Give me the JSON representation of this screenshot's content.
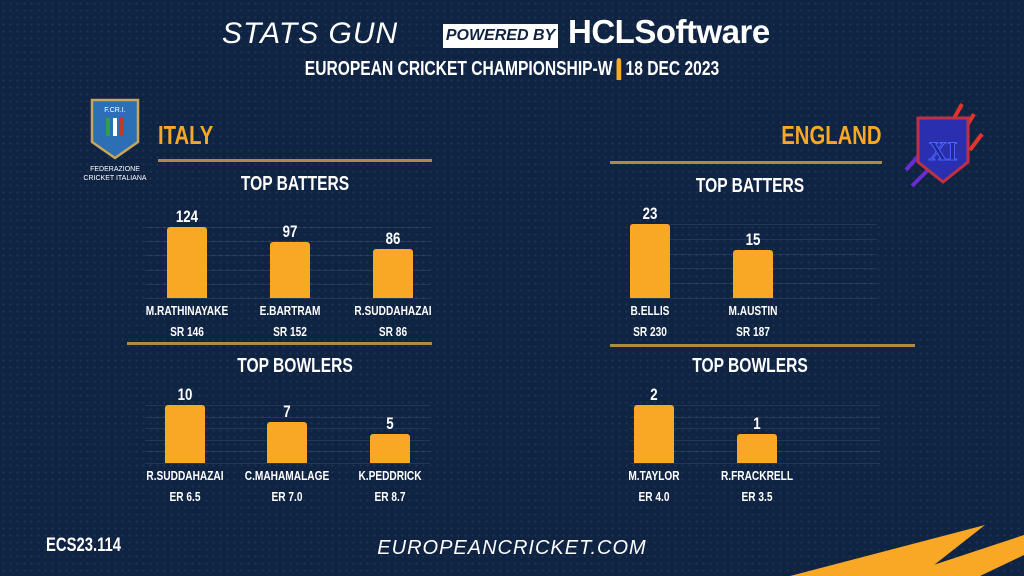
{
  "header": {
    "brand": "STATS GUN",
    "powered_by": "POWERED BY",
    "sponsor": "HCLSoftware",
    "event": "EUROPEAN CRICKET CHAMPIONSHIP-W",
    "separator": "|",
    "date": "18 DEC 2023"
  },
  "teams": {
    "left": {
      "name": "ITALY",
      "logo_text": "FEDERAZIONE CRICKET ITALIANA",
      "logo_abbr": "F.CR.I."
    },
    "right": {
      "name": "ENGLAND",
      "logo_text": "XI"
    }
  },
  "sections": {
    "batters": "TOP BATTERS",
    "bowlers": "TOP BOWLERS"
  },
  "footer": {
    "code": "ECS23.114",
    "website": "EUROPEANCRICKET.COM"
  },
  "colors": {
    "background": "#0f2343",
    "accent": "#f9a826",
    "divider": "#b08a45"
  },
  "chart_data": [
    {
      "type": "bar",
      "title": "TOP BATTERS",
      "team": "ITALY",
      "categories": [
        "M.RATHINAYAKE",
        "E.BARTRAM",
        "R.SUDDAHAZAI"
      ],
      "values": [
        124,
        97,
        86
      ],
      "sublabels": [
        "SR 146",
        "SR 152",
        "SR 86"
      ]
    },
    {
      "type": "bar",
      "title": "TOP BOWLERS",
      "team": "ITALY",
      "categories": [
        "R.SUDDAHAZAI",
        "C.MAHAMALAGE",
        "K.PEDDRICK"
      ],
      "values": [
        10,
        7,
        5
      ],
      "sublabels": [
        "ER 6.5",
        "ER 7.0",
        "ER 8.7"
      ]
    },
    {
      "type": "bar",
      "title": "TOP BATTERS",
      "team": "ENGLAND",
      "categories": [
        "B.ELLIS",
        "M.AUSTIN"
      ],
      "values": [
        23,
        15
      ],
      "sublabels": [
        "SR 230",
        "SR 187"
      ]
    },
    {
      "type": "bar",
      "title": "TOP BOWLERS",
      "team": "ENGLAND",
      "categories": [
        "M.TAYLOR",
        "R.FRACKRELL"
      ],
      "values": [
        2,
        1
      ],
      "sublabels": [
        "ER 4.0",
        "ER 3.5"
      ]
    }
  ]
}
